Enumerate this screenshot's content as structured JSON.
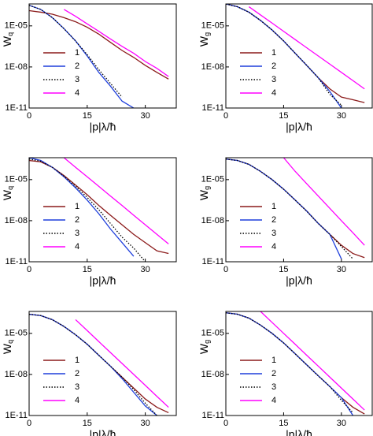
{
  "chart_data": [
    {
      "type": "line",
      "log_y": true,
      "legend": "lower left",
      "xlabel": "|p|λ/ħ",
      "ylabel": "W",
      "ylabel_subscript": "q",
      "xlim": [
        0,
        38
      ],
      "ylim": [
        1e-11,
        0.0004
      ],
      "xticks": [
        0,
        15,
        30
      ],
      "yticks": [
        {
          "value": 1e-11,
          "label": "1E-11"
        },
        {
          "value": 1e-08,
          "label": "1E-08"
        },
        {
          "value": 1e-05,
          "label": "1E-05"
        }
      ],
      "x": [
        0,
        3,
        6,
        9,
        12,
        15,
        18,
        21,
        24,
        27,
        30,
        33,
        36
      ],
      "series": [
        {
          "name": "1",
          "color": "#8b1a1a",
          "style": "solid",
          "values": [
            0.00013,
            0.0001,
            7.1e-05,
            4e-05,
            2e-05,
            7.9e-06,
            2.5e-06,
            6.3e-07,
            1.6e-07,
            5e-08,
            1.3e-08,
            4e-09,
            1.3e-09
          ]
        },
        {
          "name": "2",
          "color": "#1f3fdc",
          "style": "solid",
          "values": [
            0.00032,
            0.00016,
            4e-05,
            6.3e-06,
            7.9e-07,
            6.3e-08,
            4e-09,
            4e-10,
            3.2e-11,
            1e-11,
            null,
            null,
            null
          ]
        },
        {
          "name": "3",
          "color": "#000000",
          "style": "dotted",
          "values": [
            0.00032,
            0.00016,
            4e-05,
            6.3e-06,
            7.9e-07,
            7.9e-08,
            6.3e-09,
            6.3e-10,
            6.3e-11,
            null,
            null,
            null,
            null
          ]
        },
        {
          "name": "4",
          "color": "#ff00ff",
          "style": "solid",
          "values": [
            null,
            null,
            null,
            0.00016,
            5e-05,
            1.4e-05,
            4e-06,
            1.1e-06,
            3.2e-07,
            1e-07,
            2.5e-08,
            7.9e-09,
            2e-09
          ]
        }
      ]
    },
    {
      "type": "line",
      "log_y": true,
      "legend": "lower left",
      "xlabel": "|p|λ/ħ",
      "ylabel": "W",
      "ylabel_subscript": "g",
      "xlim": [
        0,
        38
      ],
      "ylim": [
        1e-11,
        0.0004
      ],
      "xticks": [
        0,
        15,
        30
      ],
      "yticks": [
        {
          "value": 1e-11,
          "label": "1E-11"
        },
        {
          "value": 1e-08,
          "label": "1E-08"
        },
        {
          "value": 1e-05,
          "label": "1E-05"
        }
      ],
      "x": [
        0,
        3,
        6,
        9,
        12,
        15,
        18,
        21,
        24,
        27,
        30,
        33,
        36
      ],
      "series": [
        {
          "name": "1",
          "color": "#8b1a1a",
          "style": "solid",
          "values": [
            0.0004,
            0.00025,
            0.0001,
            2.5e-05,
            5e-06,
            7.9e-07,
            1e-07,
            1.3e-08,
            1.6e-09,
            2.5e-10,
            6.3e-11,
            4e-11,
            2.5e-11
          ]
        },
        {
          "name": "2",
          "color": "#1f3fdc",
          "style": "solid",
          "values": [
            0.0004,
            0.00025,
            0.0001,
            2.5e-05,
            5e-06,
            7.9e-07,
            1e-07,
            1.3e-08,
            1.6e-09,
            1.6e-10,
            1e-11,
            null,
            null
          ]
        },
        {
          "name": "3",
          "color": "#000000",
          "style": "dotted",
          "values": [
            0.0004,
            0.00025,
            0.0001,
            2.5e-05,
            5e-06,
            7.9e-07,
            1e-07,
            1.3e-08,
            1.6e-09,
            1e-10,
            1.6e-11,
            null,
            null
          ]
        },
        {
          "name": "4",
          "color": "#ff00ff",
          "style": "solid",
          "values": [
            null,
            null,
            0.00025,
            6.3e-05,
            1.6e-05,
            4e-06,
            1e-06,
            2.5e-07,
            6.3e-08,
            1.6e-08,
            4e-09,
            1e-09,
            2.5e-10
          ]
        }
      ]
    },
    {
      "type": "line",
      "log_y": true,
      "legend": "lower left",
      "xlabel": "|p|λ/ħ",
      "ylabel": "W",
      "ylabel_subscript": "q",
      "xlim": [
        0,
        38
      ],
      "ylim": [
        1e-11,
        0.0004
      ],
      "xticks": [
        0,
        15,
        30
      ],
      "yticks": [
        {
          "value": 1e-11,
          "label": "1E-11"
        },
        {
          "value": 1e-08,
          "label": "1E-08"
        },
        {
          "value": 1e-05,
          "label": "1E-05"
        }
      ],
      "x": [
        0,
        3,
        6,
        9,
        12,
        15,
        18,
        21,
        24,
        27,
        30,
        33,
        36
      ],
      "series": [
        {
          "name": "1",
          "color": "#8b1a1a",
          "style": "solid",
          "values": [
            0.00025,
            0.0002,
            7.9e-05,
            2e-05,
            4e-06,
            7.9e-07,
            1.3e-07,
            2.5e-08,
            5e-09,
            1e-09,
            2.5e-10,
            6.3e-11,
            4e-11
          ]
        },
        {
          "name": "2",
          "color": "#1f3fdc",
          "style": "solid",
          "values": [
            0.0004,
            0.00025,
            7.9e-05,
            1.6e-05,
            2.5e-06,
            3.2e-07,
            3.2e-08,
            2.5e-09,
            2.5e-10,
            2.5e-11,
            null,
            null,
            null
          ]
        },
        {
          "name": "3",
          "color": "#000000",
          "style": "dotted",
          "values": [
            0.00032,
            0.00022,
            7.9e-05,
            1.8e-05,
            3.2e-06,
            5e-07,
            6.3e-08,
            6.3e-09,
            6.3e-10,
            1e-10,
            1e-11,
            null,
            null
          ]
        },
        {
          "name": "4",
          "color": "#ff00ff",
          "style": "solid",
          "values": [
            null,
            null,
            null,
            0.0004,
            7.9e-05,
            1.6e-05,
            3.2e-06,
            6.3e-07,
            1.3e-07,
            2.5e-08,
            5e-09,
            1e-09,
            2e-10
          ]
        }
      ]
    },
    {
      "type": "line",
      "log_y": true,
      "legend": "lower left",
      "xlabel": "|p|λ/ħ",
      "ylabel": "W",
      "ylabel_subscript": "g",
      "xlim": [
        0,
        38
      ],
      "ylim": [
        1e-11,
        0.0004
      ],
      "xticks": [
        0,
        15,
        30
      ],
      "yticks": [
        {
          "value": 1e-11,
          "label": "1E-11"
        },
        {
          "value": 1e-08,
          "label": "1E-08"
        },
        {
          "value": 1e-05,
          "label": "1E-05"
        }
      ],
      "x": [
        0,
        3,
        6,
        9,
        12,
        15,
        18,
        21,
        24,
        27,
        30,
        33,
        36
      ],
      "series": [
        {
          "name": "1",
          "color": "#8b1a1a",
          "style": "solid",
          "values": [
            0.00032,
            0.00025,
            0.00013,
            4e-05,
            1e-05,
            2e-06,
            3.2e-07,
            5e-08,
            6.3e-09,
            1e-09,
            1.6e-10,
            4e-11,
            2e-11
          ]
        },
        {
          "name": "2",
          "color": "#1f3fdc",
          "style": "solid",
          "values": [
            0.00032,
            0.00025,
            0.00013,
            4e-05,
            1e-05,
            2e-06,
            3.2e-07,
            5e-08,
            6.3e-09,
            1e-09,
            1.6e-11,
            null,
            null
          ]
        },
        {
          "name": "3",
          "color": "#000000",
          "style": "dotted",
          "values": [
            0.00032,
            0.00025,
            0.00013,
            4e-05,
            1e-05,
            2e-06,
            3.2e-07,
            5e-08,
            6.3e-09,
            1e-09,
            1.3e-10,
            1.6e-11,
            null
          ]
        },
        {
          "name": "4",
          "color": "#ff00ff",
          "style": "solid",
          "values": [
            null,
            null,
            null,
            null,
            null,
            0.0004,
            4e-05,
            5e-06,
            6.3e-07,
            7.9e-08,
            1e-08,
            1.3e-09,
            1.6e-10
          ]
        }
      ]
    },
    {
      "type": "line",
      "log_y": true,
      "legend": "lower left",
      "xlabel": "|p|λ/ħ",
      "ylabel": "W",
      "ylabel_subscript": "q",
      "xlim": [
        0,
        38
      ],
      "ylim": [
        1e-11,
        0.0004
      ],
      "xticks": [
        0,
        15,
        30
      ],
      "yticks": [
        {
          "value": 1e-11,
          "label": "1E-11"
        },
        {
          "value": 1e-08,
          "label": "1E-08"
        },
        {
          "value": 1e-05,
          "label": "1E-05"
        }
      ],
      "x": [
        0,
        3,
        6,
        9,
        12,
        15,
        18,
        21,
        24,
        27,
        30,
        33,
        36
      ],
      "series": [
        {
          "name": "1",
          "color": "#8b1a1a",
          "style": "solid",
          "values": [
            0.00025,
            0.0002,
            0.0001,
            3.2e-05,
            7.9e-06,
            1.6e-06,
            2.5e-07,
            4e-08,
            6.3e-09,
            1e-09,
            1.6e-10,
            4e-11,
            1.6e-11
          ]
        },
        {
          "name": "2",
          "color": "#1f3fdc",
          "style": "solid",
          "values": [
            0.00025,
            0.0002,
            0.0001,
            3.2e-05,
            7.9e-06,
            1.6e-06,
            2.5e-07,
            4e-08,
            5e-09,
            5e-10,
            5e-11,
            1e-11,
            null
          ]
        },
        {
          "name": "3",
          "color": "#000000",
          "style": "dotted",
          "values": [
            0.00025,
            0.0002,
            0.0001,
            3.2e-05,
            7.9e-06,
            1.6e-06,
            2.5e-07,
            4e-08,
            6.3e-09,
            7.9e-10,
            7.9e-11,
            1e-11,
            null
          ]
        },
        {
          "name": "4",
          "color": "#ff00ff",
          "style": "solid",
          "values": [
            null,
            null,
            null,
            null,
            0.0001,
            1.6e-05,
            2.5e-06,
            4e-07,
            6.3e-08,
            1e-08,
            1.6e-09,
            2.5e-10,
            4e-11
          ]
        }
      ]
    },
    {
      "type": "line",
      "log_y": true,
      "legend": "lower left",
      "xlabel": "|p|λ/ħ",
      "ylabel": "W",
      "ylabel_subscript": "g",
      "xlim": [
        0,
        38
      ],
      "ylim": [
        1e-11,
        0.0004
      ],
      "xticks": [
        0,
        15,
        30
      ],
      "yticks": [
        {
          "value": 1e-11,
          "label": "1E-11"
        },
        {
          "value": 1e-08,
          "label": "1E-08"
        },
        {
          "value": 1e-05,
          "label": "1E-05"
        }
      ],
      "x": [
        0,
        3,
        6,
        9,
        12,
        15,
        18,
        21,
        24,
        27,
        30,
        33,
        36
      ],
      "series": [
        {
          "name": "1",
          "color": "#8b1a1a",
          "style": "solid",
          "values": [
            0.00032,
            0.00025,
            0.00013,
            4e-05,
            1e-05,
            2e-06,
            3.2e-07,
            5e-08,
            7.9e-09,
            1.3e-09,
            2e-10,
            4e-11,
            1.3e-11
          ]
        },
        {
          "name": "2",
          "color": "#1f3fdc",
          "style": "solid",
          "values": [
            0.00032,
            0.00025,
            0.00013,
            4e-05,
            1e-05,
            2e-06,
            3.2e-07,
            5e-08,
            7.9e-09,
            1.3e-09,
            2e-10,
            1e-11,
            null
          ]
        },
        {
          "name": "3",
          "color": "#000000",
          "style": "dotted",
          "values": [
            0.00032,
            0.00025,
            0.00013,
            4e-05,
            1e-05,
            2e-06,
            3.2e-07,
            5e-08,
            7.9e-09,
            1.3e-09,
            1.3e-10,
            1.6e-11,
            null
          ]
        },
        {
          "name": "4",
          "color": "#ff00ff",
          "style": "solid",
          "values": [
            null,
            null,
            null,
            0.0004,
            6.3e-05,
            1e-05,
            1.6e-06,
            2.5e-07,
            4e-08,
            6.3e-09,
            1e-09,
            1.6e-10,
            2.5e-11
          ]
        }
      ]
    }
  ]
}
